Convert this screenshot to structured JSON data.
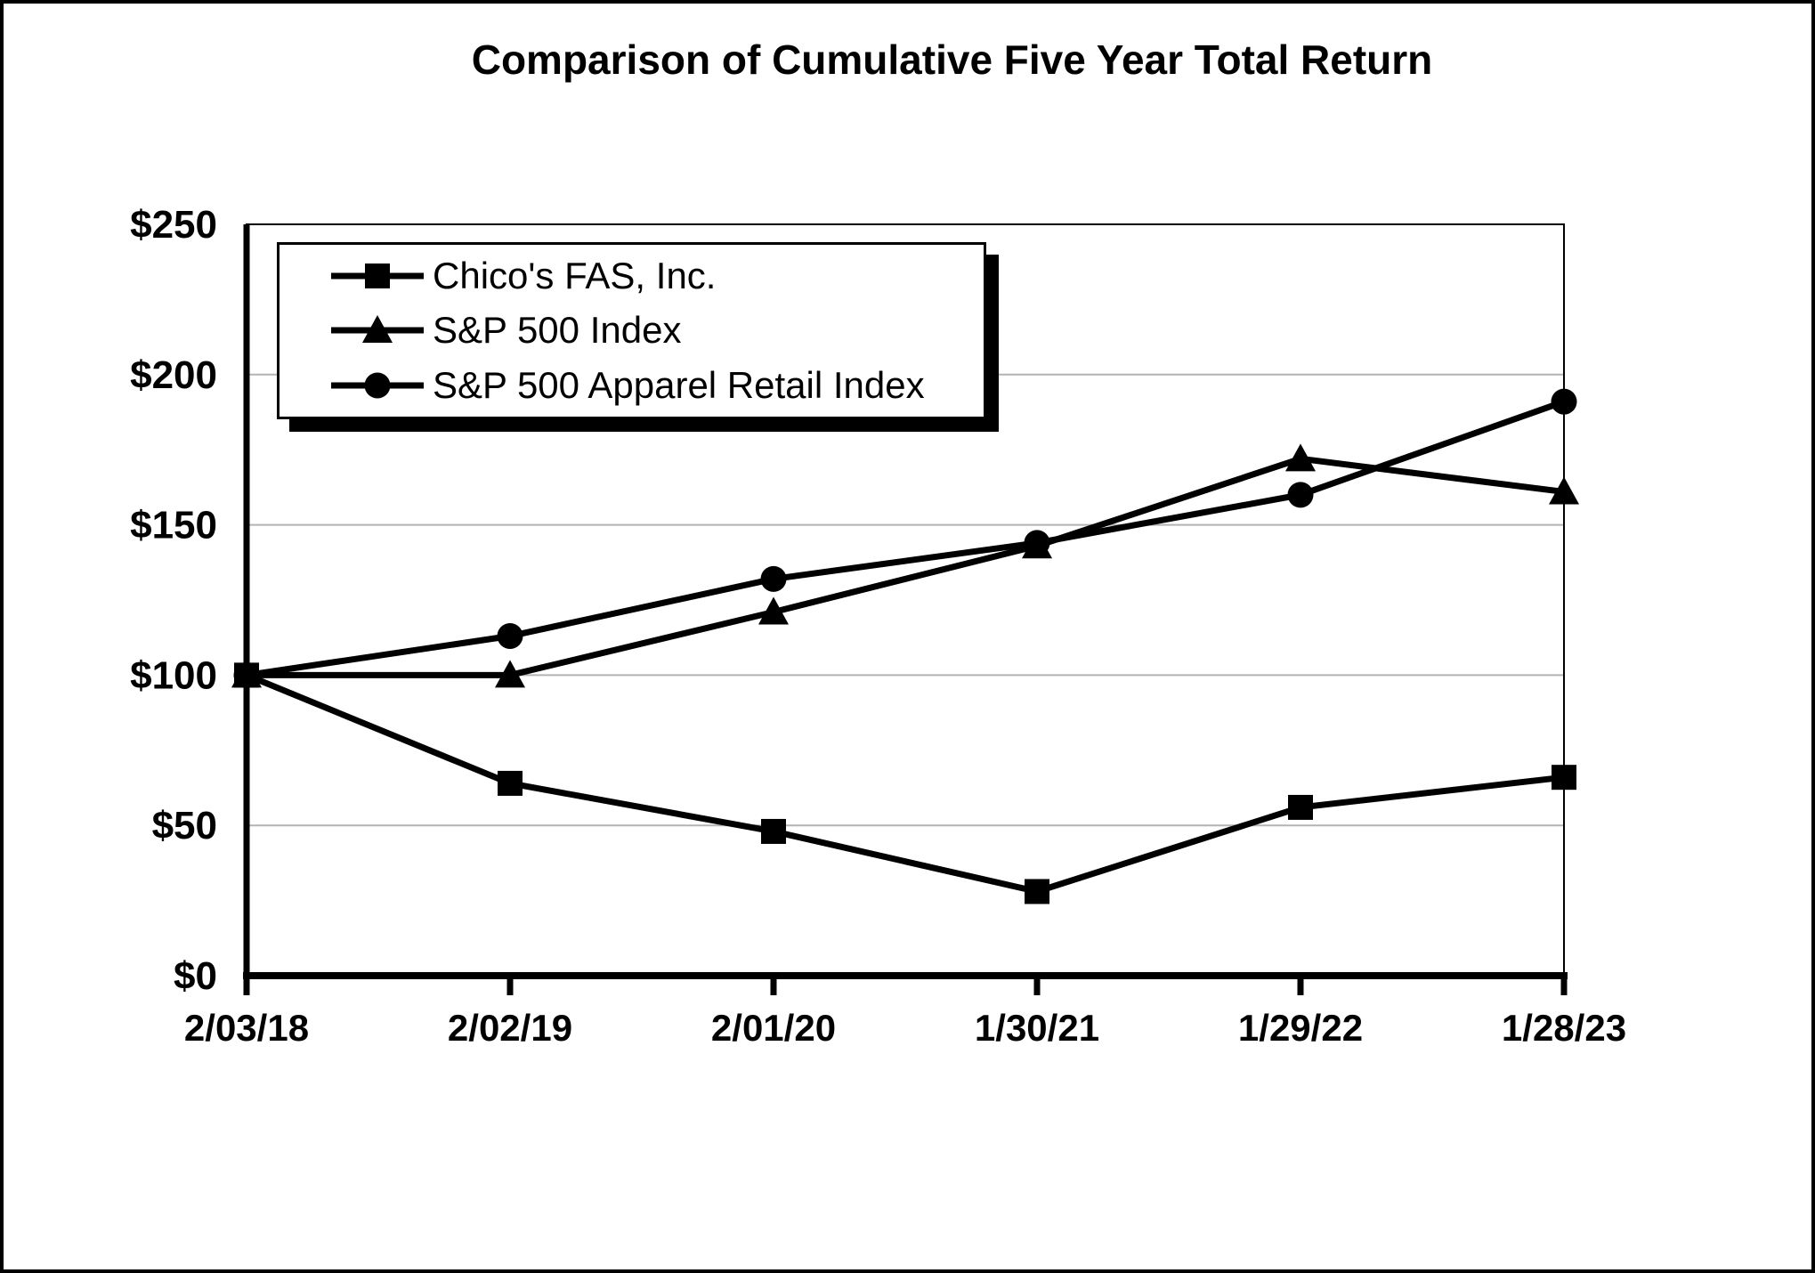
{
  "page": {
    "background": "#ffffff",
    "border_color": "#000000"
  },
  "title": "Comparison of Cumulative Five Year Total Return",
  "chart_data": {
    "type": "line",
    "title": "Comparison of Cumulative Five Year Total Return",
    "categories": [
      "2/03/18",
      "2/02/19",
      "2/01/20",
      "1/30/21",
      "1/29/22",
      "1/28/23"
    ],
    "series": [
      {
        "name": "Chico's FAS, Inc.",
        "marker": "square",
        "color": "#000000",
        "values": [
          100,
          64,
          48,
          28,
          56,
          66
        ]
      },
      {
        "name": "S&P 500 Index",
        "marker": "triangle",
        "color": "#000000",
        "values": [
          100,
          100,
          121,
          143,
          172,
          161
        ]
      },
      {
        "name": "S&P 500 Apparel Retail Index",
        "marker": "circle",
        "color": "#000000",
        "values": [
          100,
          113,
          132,
          144,
          160,
          191
        ]
      }
    ],
    "xlabel": "",
    "ylabel": "",
    "ylim": [
      0,
      250
    ],
    "y_ticks": [
      0,
      50,
      100,
      150,
      200,
      250
    ],
    "y_tick_prefix": "$",
    "grid": "horizontal",
    "gridline_color": "#b3b3b3",
    "axis_color": "#000000",
    "legend_position": "top-left-inside",
    "legend_shadow": true
  }
}
